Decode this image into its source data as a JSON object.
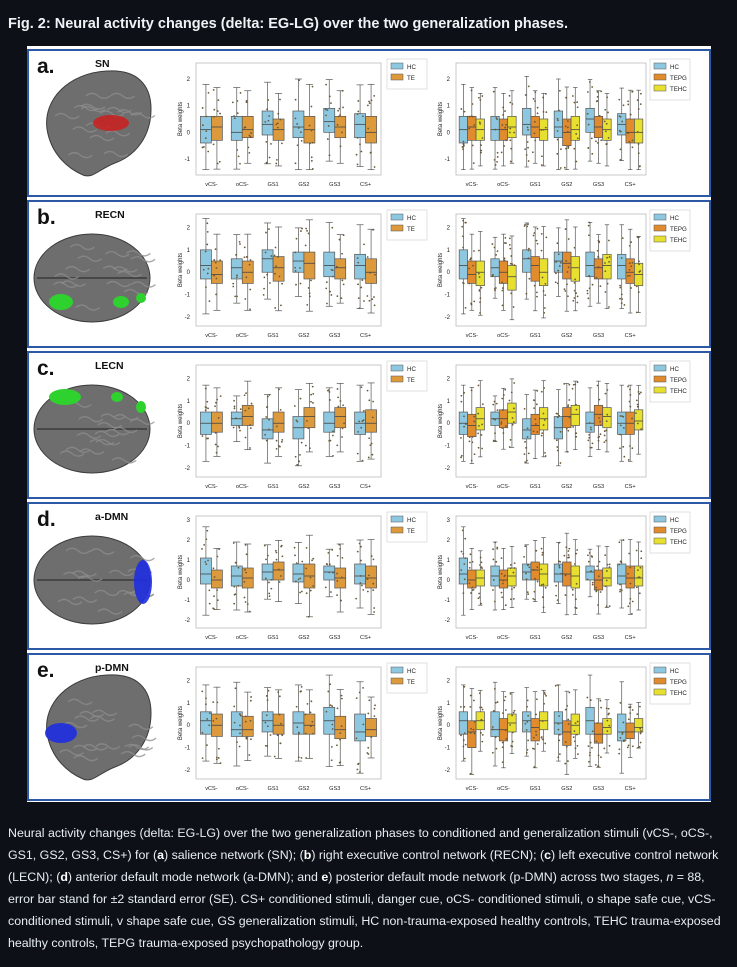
{
  "title": "Fig. 2: Neural activity changes (delta: EG-LG) over the two generalization phases.",
  "categories": [
    "vCS-",
    "oCS-",
    "GS1",
    "GS2",
    "GS3",
    "CS+"
  ],
  "ylabel": "Beta weights",
  "colors": {
    "HC": "#8ec8e0",
    "TE": "#dd9a3d",
    "TEPG": "#e08b2d",
    "TEHC": "#e8e030",
    "frame": "#2d58a5"
  },
  "panels": [
    {
      "letter": "a.",
      "network": "SN",
      "brain_color": "#cc1f1f",
      "view": "lateral",
      "left_ticks": [
        "2",
        "1",
        "0",
        "-1"
      ],
      "right_ticks": [
        "2",
        "1",
        "0",
        "-1"
      ],
      "chart_data": [
        {
          "type": "box",
          "ylabel": "Beta weights",
          "ylim": [
            -1.6,
            2.6
          ],
          "legend": [
            "HC",
            "TE"
          ],
          "series": [
            {
              "name": "HC",
              "median": [
                0.1,
                0.0,
                0.3,
                0.2,
                0.4,
                0.3
              ],
              "q1": [
                -0.4,
                -0.3,
                -0.1,
                -0.2,
                0.0,
                -0.2
              ],
              "q3": [
                0.6,
                0.6,
                0.8,
                0.8,
                0.9,
                0.7
              ]
            },
            {
              "name": "TE",
              "median": [
                0.2,
                0.1,
                0.1,
                0.1,
                0.2,
                0.0
              ],
              "q1": [
                -0.3,
                -0.2,
                -0.3,
                -0.4,
                -0.2,
                -0.4
              ],
              "q3": [
                0.6,
                0.6,
                0.5,
                0.6,
                0.6,
                0.6
              ]
            }
          ]
        },
        {
          "type": "box",
          "ylabel": "Beta weights",
          "ylim": [
            -1.6,
            2.6
          ],
          "legend": [
            "HC",
            "TEPG",
            "TEHC"
          ],
          "series": [
            {
              "name": "HC",
              "median": [
                0.1,
                0.1,
                0.3,
                0.2,
                0.5,
                0.3
              ],
              "q1": [
                -0.4,
                -0.3,
                -0.1,
                -0.2,
                0.0,
                -0.1
              ],
              "q3": [
                0.6,
                0.6,
                0.9,
                0.8,
                0.9,
                0.7
              ]
            },
            {
              "name": "TEPG",
              "median": [
                0.2,
                0.1,
                0.2,
                0.0,
                0.2,
                0.0
              ],
              "q1": [
                -0.3,
                -0.3,
                -0.2,
                -0.5,
                -0.2,
                -0.4
              ],
              "q3": [
                0.6,
                0.5,
                0.6,
                0.5,
                0.6,
                0.5
              ]
            },
            {
              "name": "TEHC",
              "median": [
                0.1,
                0.2,
                0.1,
                0.1,
                0.1,
                0.0
              ],
              "q1": [
                -0.3,
                -0.2,
                -0.3,
                -0.3,
                -0.3,
                -0.4
              ],
              "q3": [
                0.5,
                0.6,
                0.5,
                0.6,
                0.5,
                0.5
              ]
            }
          ]
        }
      ]
    },
    {
      "letter": "b.",
      "network": "RECN",
      "brain_color": "#2fd12f",
      "view": "dorsal",
      "left_ticks": [
        "2",
        "1",
        "0",
        "-1",
        "-2"
      ],
      "right_ticks": [
        "2",
        "1",
        "0",
        "-1",
        "-2"
      ],
      "chart_data": [
        {
          "type": "box",
          "ylabel": "Beta weights",
          "ylim": [
            -2.4,
            2.6
          ],
          "legend": [
            "HC",
            "TE"
          ],
          "series": [
            {
              "name": "HC",
              "median": [
                0.3,
                0.2,
                0.6,
                0.5,
                0.3,
                0.3
              ],
              "q1": [
                -0.3,
                -0.3,
                0.0,
                0.0,
                -0.2,
                -0.3
              ],
              "q3": [
                1.0,
                0.6,
                1.0,
                0.9,
                0.9,
                0.8
              ]
            },
            {
              "name": "TE",
              "median": [
                -0.1,
                0.0,
                0.2,
                0.4,
                0.2,
                0.0
              ],
              "q1": [
                -0.5,
                -0.5,
                -0.4,
                -0.3,
                -0.3,
                -0.5
              ],
              "q3": [
                0.5,
                0.5,
                0.7,
                0.9,
                0.6,
                0.6
              ]
            }
          ]
        },
        {
          "type": "box",
          "ylabel": "Beta weights",
          "ylim": [
            -2.4,
            2.6
          ],
          "legend": [
            "HC",
            "TEPG",
            "TEHC"
          ],
          "series": [
            {
              "name": "HC",
              "median": [
                0.3,
                0.2,
                0.6,
                0.5,
                0.3,
                0.3
              ],
              "q1": [
                -0.3,
                -0.2,
                0.0,
                0.0,
                -0.2,
                -0.3
              ],
              "q3": [
                1.0,
                0.6,
                1.0,
                0.9,
                0.9,
                0.8
              ]
            },
            {
              "name": "TEPG",
              "median": [
                -0.1,
                0.0,
                0.3,
                0.4,
                0.2,
                0.0
              ],
              "q1": [
                -0.5,
                -0.5,
                -0.4,
                -0.3,
                -0.3,
                -0.5
              ],
              "q3": [
                0.5,
                0.5,
                0.7,
                0.9,
                0.6,
                0.6
              ]
            },
            {
              "name": "TEHC",
              "median": [
                0.0,
                -0.2,
                0.0,
                0.2,
                0.3,
                -0.1
              ],
              "q1": [
                -0.6,
                -0.8,
                -0.6,
                -0.4,
                -0.3,
                -0.6
              ],
              "q3": [
                0.5,
                0.3,
                0.6,
                0.7,
                0.8,
                0.4
              ]
            }
          ]
        }
      ]
    },
    {
      "letter": "c.",
      "network": "LECN",
      "brain_color": "#2fd12f",
      "view": "dorsal",
      "left_ticks": [
        "2",
        "1",
        "0",
        "-1",
        "-2"
      ],
      "right_ticks": [
        "2",
        "1",
        "0",
        "-1",
        "-2"
      ],
      "chart_data": [
        {
          "type": "box",
          "ylabel": "Beta weights",
          "ylim": [
            -2.4,
            2.6
          ],
          "legend": [
            "HC",
            "TE"
          ],
          "series": [
            {
              "name": "HC",
              "median": [
                0.0,
                0.2,
                -0.3,
                -0.2,
                0.0,
                0.0
              ],
              "q1": [
                -0.5,
                -0.1,
                -0.7,
                -0.7,
                -0.4,
                -0.5
              ],
              "q3": [
                0.5,
                0.5,
                0.2,
                0.3,
                0.5,
                0.5
              ]
            },
            {
              "name": "TE",
              "median": [
                0.0,
                0.3,
                0.0,
                0.3,
                0.3,
                0.0
              ],
              "q1": [
                -0.4,
                -0.1,
                -0.4,
                -0.2,
                -0.2,
                -0.4
              ],
              "q3": [
                0.5,
                0.8,
                0.5,
                0.7,
                0.7,
                0.6
              ]
            }
          ]
        },
        {
          "type": "box",
          "ylabel": "Beta weights",
          "ylim": [
            -2.4,
            2.6
          ],
          "legend": [
            "HC",
            "TEPG",
            "TEHC"
          ],
          "series": [
            {
              "name": "HC",
              "median": [
                0.0,
                0.2,
                -0.3,
                -0.2,
                0.0,
                0.0
              ],
              "q1": [
                -0.5,
                -0.1,
                -0.7,
                -0.7,
                -0.4,
                -0.5
              ],
              "q3": [
                0.5,
                0.5,
                0.2,
                0.3,
                0.5,
                0.5
              ]
            },
            {
              "name": "TEPG",
              "median": [
                -0.1,
                0.2,
                -0.1,
                0.3,
                0.4,
                0.0
              ],
              "q1": [
                -0.6,
                -0.2,
                -0.5,
                -0.2,
                -0.1,
                -0.5
              ],
              "q3": [
                0.4,
                0.6,
                0.4,
                0.7,
                0.8,
                0.5
              ]
            },
            {
              "name": "TEHC",
              "median": [
                0.2,
                0.5,
                0.2,
                0.4,
                0.3,
                0.1
              ],
              "q1": [
                -0.3,
                0.0,
                -0.3,
                -0.1,
                -0.2,
                -0.3
              ],
              "q3": [
                0.7,
                0.9,
                0.7,
                0.8,
                0.7,
                0.6
              ]
            }
          ]
        }
      ]
    },
    {
      "letter": "d.",
      "network": "a-DMN",
      "brain_color": "#1f2de0",
      "view": "dorsal",
      "left_ticks": [
        "3",
        "2",
        "1",
        "0",
        "-1",
        "-2"
      ],
      "right_ticks": [
        "3",
        "2",
        "1",
        "0",
        "-1",
        "-2"
      ],
      "chart_data": [
        {
          "type": "box",
          "ylabel": "Beta weights",
          "ylim": [
            -2.4,
            3.2
          ],
          "legend": [
            "HC",
            "TE"
          ],
          "series": [
            {
              "name": "HC",
              "median": [
                0.3,
                0.2,
                0.4,
                0.3,
                0.4,
                0.2
              ],
              "q1": [
                -0.2,
                -0.3,
                0.0,
                -0.1,
                0.0,
                -0.2
              ],
              "q3": [
                1.1,
                0.7,
                0.8,
                0.8,
                0.7,
                0.8
              ]
            },
            {
              "name": "TE",
              "median": [
                0.0,
                0.1,
                0.5,
                0.2,
                0.1,
                0.1
              ],
              "q1": [
                -0.4,
                -0.4,
                0.0,
                -0.4,
                -0.4,
                -0.4
              ],
              "q3": [
                0.5,
                0.6,
                0.9,
                0.8,
                0.6,
                0.7
              ]
            }
          ]
        },
        {
          "type": "box",
          "ylabel": "Beta weights",
          "ylim": [
            -2.4,
            3.2
          ],
          "legend": [
            "HC",
            "TEPG",
            "TEHC"
          ],
          "series": [
            {
              "name": "HC",
              "median": [
                0.3,
                0.2,
                0.4,
                0.3,
                0.4,
                0.2
              ],
              "q1": [
                -0.2,
                -0.3,
                0.0,
                -0.1,
                0.0,
                -0.2
              ],
              "q3": [
                1.1,
                0.7,
                0.8,
                0.8,
                0.7,
                0.8
              ]
            },
            {
              "name": "TEPG",
              "median": [
                0.0,
                0.0,
                0.5,
                0.3,
                0.0,
                0.1
              ],
              "q1": [
                -0.4,
                -0.4,
                0.0,
                -0.3,
                -0.5,
                -0.4
              ],
              "q3": [
                0.5,
                0.5,
                0.9,
                0.9,
                0.5,
                0.7
              ]
            },
            {
              "name": "TEHC",
              "median": [
                0.1,
                0.2,
                0.3,
                0.2,
                0.1,
                0.1
              ],
              "q1": [
                -0.3,
                -0.3,
                -0.3,
                -0.4,
                -0.3,
                -0.3
              ],
              "q3": [
                0.5,
                0.6,
                0.8,
                0.7,
                0.6,
                0.7
              ]
            }
          ]
        }
      ]
    },
    {
      "letter": "e.",
      "network": "p-DMN",
      "brain_color": "#1f2de0",
      "view": "lateral",
      "left_ticks": [
        "2",
        "1",
        "0",
        "-1",
        "-2"
      ],
      "right_ticks": [
        "2",
        "1",
        "0",
        "-1",
        "-2"
      ],
      "chart_data": [
        {
          "type": "box",
          "ylabel": "Beta weights",
          "ylim": [
            -2.4,
            2.6
          ],
          "legend": [
            "HC",
            "TE"
          ],
          "series": [
            {
              "name": "HC",
              "median": [
                0.2,
                -0.2,
                0.2,
                0.1,
                0.2,
                -0.3
              ],
              "q1": [
                -0.4,
                -0.5,
                -0.3,
                -0.4,
                -0.4,
                -0.7
              ],
              "q3": [
                0.6,
                0.6,
                0.6,
                0.6,
                0.8,
                0.5
              ]
            },
            {
              "name": "TE",
              "median": [
                0.0,
                -0.2,
                0.0,
                0.0,
                -0.2,
                -0.2
              ],
              "q1": [
                -0.5,
                -0.5,
                -0.4,
                -0.4,
                -0.6,
                -0.5
              ],
              "q3": [
                0.5,
                0.4,
                0.5,
                0.5,
                0.4,
                0.3
              ]
            }
          ]
        },
        {
          "type": "box",
          "ylabel": "Beta weights",
          "ylim": [
            -2.4,
            2.6
          ],
          "legend": [
            "HC",
            "TEPG",
            "TEHC"
          ],
          "series": [
            {
              "name": "HC",
              "median": [
                0.2,
                -0.2,
                0.2,
                0.1,
                0.2,
                -0.3
              ],
              "q1": [
                -0.4,
                -0.5,
                -0.3,
                -0.4,
                -0.4,
                -0.7
              ],
              "q3": [
                0.6,
                0.6,
                0.6,
                0.6,
                0.8,
                0.5
              ]
            },
            {
              "name": "TEPG",
              "median": [
                -0.3,
                -0.2,
                -0.1,
                -0.3,
                -0.4,
                -0.3
              ],
              "q1": [
                -1.0,
                -0.7,
                -0.7,
                -0.9,
                -0.8,
                -0.6
              ],
              "q3": [
                0.2,
                0.3,
                0.3,
                0.2,
                0.1,
                0.1
              ]
            },
            {
              "name": "TEHC",
              "median": [
                0.2,
                0.1,
                0.2,
                0.0,
                -0.1,
                -0.1
              ],
              "q1": [
                -0.2,
                -0.3,
                -0.2,
                -0.4,
                -0.4,
                -0.3
              ],
              "q3": [
                0.6,
                0.5,
                0.6,
                0.5,
                0.3,
                0.3
              ]
            }
          ]
        }
      ]
    }
  ],
  "caption": {
    "p1": "Neural activity changes (delta: EG-LG) over the two generalization phases to conditioned and generalization stimuli (vCS-, oCS-, GS1, GS2, GS3, CS+) for (",
    "a": "a",
    "p2": ") salience network (SN); (",
    "b": "b",
    "p3": ") right executive control network (RECN); (",
    "c": "c",
    "p4": ") left executive control network (LECN); (",
    "d": "d",
    "p5": ") anterior default mode network (a-DMN); and ",
    "e": "e",
    "p6": ") posterior default mode network (p-DMN) across two stages, ",
    "n": "n",
    "p7": " = 88, error bar stand for ±2 standard error (SE). CS+ conditioned stimuli, danger cue, oCS- conditioned stimuli, o shape safe cue, vCS- conditioned stimuli, v shape safe cue, GS generalization stimuli, HC non-trauma-exposed healthy controls, TEHC trauma-exposed healthy controls, TEPG trauma-exposed psychopathology group."
  }
}
